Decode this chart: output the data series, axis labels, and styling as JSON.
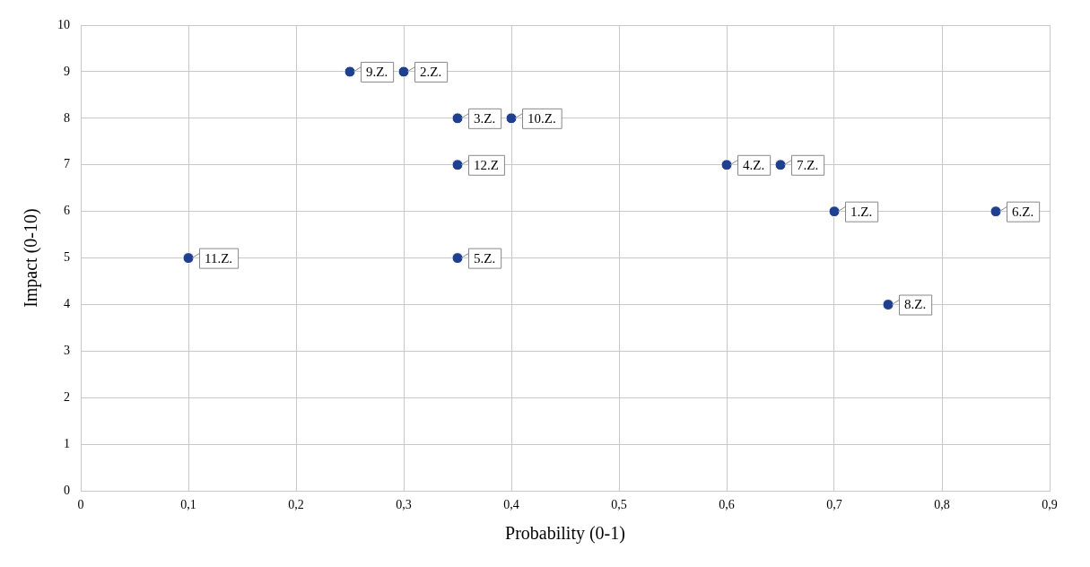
{
  "chart_data": {
    "type": "scatter",
    "xlabel": "Probability (0-1)",
    "ylabel": "Impact (0-10)",
    "series": [
      {
        "color": "#1f3f8f",
        "x": [
          0.7,
          0.3,
          0.35,
          0.6,
          0.35,
          0.85,
          0.65,
          0.75,
          0.25,
          0.4,
          0.1,
          0.35
        ],
        "values": [
          6,
          9,
          8,
          7,
          5,
          6,
          7,
          4,
          9,
          8,
          5,
          7
        ]
      }
    ],
    "annotations": [
      {
        "text": "1.Z.",
        "x": 0.7,
        "y": 6
      },
      {
        "text": "2.Z.",
        "x": 0.3,
        "y": 9
      },
      {
        "text": "3.Z.",
        "x": 0.35,
        "y": 8
      },
      {
        "text": "4.Z.",
        "x": 0.6,
        "y": 7
      },
      {
        "text": "5.Z.",
        "x": 0.35,
        "y": 5
      },
      {
        "text": "6.Z.",
        "x": 0.85,
        "y": 6
      },
      {
        "text": "7.Z.",
        "x": 0.65,
        "y": 7
      },
      {
        "text": "8.Z.",
        "x": 0.75,
        "y": 4
      },
      {
        "text": "9.Z.",
        "x": 0.25,
        "y": 9
      },
      {
        "text": "10.Z.",
        "x": 0.4,
        "y": 8
      },
      {
        "text": "11.Z.",
        "x": 0.1,
        "y": 5
      },
      {
        "text": "12.Z",
        "x": 0.35,
        "y": 7
      }
    ],
    "xlim": [
      0,
      0.9
    ],
    "xticks": [
      0,
      {
        "value": 0.1,
        "label": "0,1"
      },
      {
        "value": 0.2,
        "label": "0,2"
      },
      {
        "value": 0.3,
        "label": "0,3"
      },
      {
        "value": 0.4,
        "label": "0,4"
      },
      {
        "value": 0.5,
        "label": "0,5"
      },
      {
        "value": 0.6,
        "label": "0,6"
      },
      {
        "value": 0.7,
        "label": "0,7"
      },
      {
        "value": 0.8,
        "label": "0,8"
      },
      {
        "value": 0.9,
        "label": "0,9"
      }
    ],
    "ylim": [
      0,
      10
    ],
    "yticks": [
      0,
      1,
      2,
      3,
      4,
      5,
      6,
      7,
      8,
      9,
      10
    ],
    "grid": true,
    "marker": "circle",
    "legend": false
  }
}
